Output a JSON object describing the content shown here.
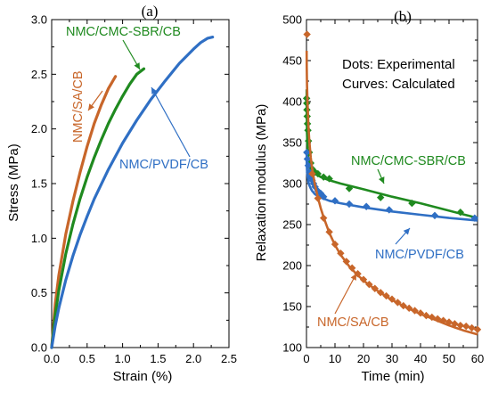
{
  "colors": {
    "green": "#1f8a1f",
    "blue": "#2f6fc4",
    "orange": "#c8662a",
    "axis": "#000000"
  },
  "chart_data": [
    {
      "type": "line",
      "panel_label": "(a)",
      "xlabel": "Strain (%)",
      "ylabel": "Stress (MPa)",
      "xlim": [
        0,
        2.5
      ],
      "ylim": [
        0,
        3.0
      ],
      "xticks": [
        "0.0",
        "0.5",
        "1.0",
        "1.5",
        "2.0",
        "2.5"
      ],
      "yticks": [
        "0.0",
        "0.5",
        "1.0",
        "1.5",
        "2.0",
        "2.5",
        "3.0"
      ],
      "series": [
        {
          "name": "NMC/SA/CB",
          "color": "#c8662a",
          "x": [
            0,
            0.05,
            0.1,
            0.2,
            0.3,
            0.4,
            0.5,
            0.6,
            0.7,
            0.8,
            0.9
          ],
          "y": [
            0,
            0.4,
            0.66,
            1.04,
            1.34,
            1.6,
            1.84,
            2.05,
            2.22,
            2.37,
            2.48
          ]
        },
        {
          "name": "NMC/CMC-SBR/CB",
          "color": "#1f8a1f",
          "x": [
            0,
            0.05,
            0.1,
            0.2,
            0.3,
            0.4,
            0.5,
            0.6,
            0.7,
            0.8,
            0.9,
            1.0,
            1.1,
            1.2,
            1.3
          ],
          "y": [
            0,
            0.3,
            0.52,
            0.86,
            1.13,
            1.36,
            1.56,
            1.74,
            1.9,
            2.05,
            2.18,
            2.3,
            2.41,
            2.5,
            2.55
          ]
        },
        {
          "name": "NMC/PVDF/CB",
          "color": "#2f6fc4",
          "x": [
            0,
            0.05,
            0.1,
            0.2,
            0.3,
            0.4,
            0.5,
            0.6,
            0.8,
            1.0,
            1.2,
            1.4,
            1.6,
            1.8,
            2.0,
            2.1,
            2.2,
            2.27
          ],
          "y": [
            0,
            0.2,
            0.36,
            0.62,
            0.84,
            1.03,
            1.2,
            1.36,
            1.63,
            1.87,
            2.08,
            2.27,
            2.44,
            2.6,
            2.73,
            2.79,
            2.83,
            2.84
          ]
        }
      ],
      "annotations": {
        "green_label": "NMC/CMC-SBR/CB",
        "orange_label": "NMC/SA/CB",
        "blue_label": "NMC/PVDF/CB"
      }
    },
    {
      "type": "scatter",
      "panel_label": "(b)",
      "xlabel": "Time (min)",
      "ylabel": "Relaxation modulus (MPa)",
      "xlim": [
        0,
        60
      ],
      "ylim": [
        100,
        500
      ],
      "xticks": [
        "0",
        "10",
        "20",
        "30",
        "40",
        "50",
        "60"
      ],
      "yticks": [
        "100",
        "150",
        "200",
        "250",
        "300",
        "350",
        "400",
        "450",
        "500"
      ],
      "notes": [
        "Dots: Experimental",
        "Curves: Calculated"
      ],
      "series": [
        {
          "name": "NMC/CMC-SBR/CB",
          "color": "#1f8a1f",
          "points_x": [
            0.05,
            0.1,
            0.15,
            0.25,
            0.35,
            0.5,
            0.7,
            1.0,
            1.5,
            2.0,
            3.0,
            4.0,
            6.0,
            8.0,
            15.0,
            26.0,
            37.0,
            54.0
          ],
          "points_y": [
            404,
            398,
            390,
            382,
            373,
            365,
            352,
            338,
            325,
            318,
            314,
            312,
            308,
            306,
            294,
            283,
            276,
            265
          ],
          "curve_x": [
            0.05,
            0.1,
            0.2,
            0.4,
            0.7,
            1,
            1.5,
            2,
            3,
            5,
            8,
            12,
            20,
            30,
            40,
            50,
            60
          ],
          "curve_y": [
            415,
            390,
            362,
            340,
            328,
            322,
            318,
            315,
            312,
            308,
            304,
            300,
            293,
            284,
            276,
            267,
            258
          ]
        },
        {
          "name": "NMC/PVDF/CB",
          "color": "#2f6fc4",
          "points_x": [
            0.1,
            0.3,
            0.6,
            1.0,
            1.5,
            2.0,
            2.5,
            3.0,
            4.0,
            5.0,
            6.0,
            10.0,
            15.0,
            21.0,
            29.0,
            45.0,
            59.0
          ],
          "points_y": [
            338,
            330,
            322,
            314,
            308,
            304,
            300,
            296,
            291,
            288,
            284,
            279,
            275,
            272,
            268,
            261,
            258
          ],
          "curve_x": [
            0.05,
            0.1,
            0.2,
            0.4,
            0.7,
            1,
            1.5,
            2,
            3,
            5,
            8,
            12,
            20,
            30,
            40,
            50,
            60
          ],
          "curve_y": [
            336,
            326,
            316,
            308,
            302,
            298,
            294,
            291,
            287,
            283,
            279,
            276,
            271,
            266,
            262,
            258,
            255
          ]
        },
        {
          "name": "NMC/SA/CB",
          "color": "#c8662a",
          "points_x": [
            0.2,
            2.0,
            4.0,
            6.0,
            8.0,
            10.0,
            12.0,
            14.0,
            16.0,
            18.0,
            20.0,
            22.0,
            24.0,
            26.0,
            28.0,
            30.0,
            32.0,
            34.0,
            36.0,
            38.0,
            40.0,
            42.0,
            44.0,
            46.0,
            48.0,
            50.0,
            52.0,
            54.0,
            56.0,
            58.0,
            60.0
          ],
          "points_y": [
            482,
            312,
            282,
            258,
            241,
            226,
            215,
            205,
            197,
            190,
            183,
            177,
            172,
            167,
            163,
            159,
            155,
            151,
            148,
            145,
            142,
            139,
            137,
            135,
            133,
            131,
            129,
            127,
            126,
            124,
            122
          ],
          "curve_x": [
            0.05,
            0.1,
            0.2,
            0.4,
            0.7,
            1,
            1.5,
            2,
            3,
            4,
            5,
            6,
            8,
            10,
            12,
            15,
            18,
            21,
            25,
            30,
            35,
            40,
            45,
            50,
            55,
            60
          ],
          "curve_y": [
            462,
            442,
            420,
            395,
            370,
            352,
            332,
            318,
            298,
            283,
            270,
            259,
            240,
            225,
            213,
            199,
            188,
            179,
            169,
            158,
            149,
            141,
            134,
            127,
            121,
            116
          ]
        }
      ],
      "annotations": {
        "green_label": "NMC/CMC-SBR/CB",
        "blue_label": "NMC/PVDF/CB",
        "orange_label": "NMC/SA/CB"
      }
    }
  ]
}
